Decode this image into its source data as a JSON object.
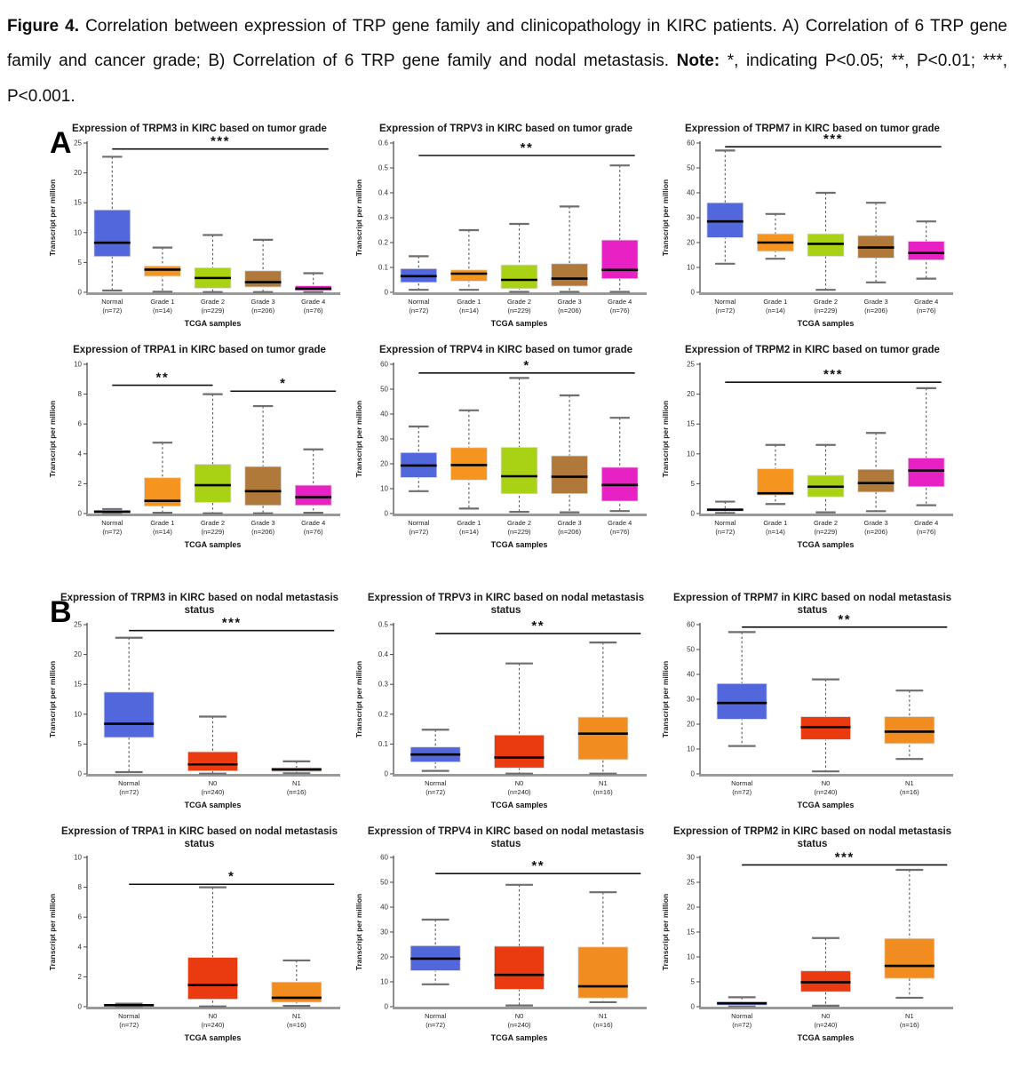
{
  "caption": {
    "fig_label": "Figure 4.",
    "body": " Correlation between expression of TRP gene family and clinicopathology in KIRC patients. A) Correlation of 6 TRP gene family and cancer grade; B) Correlation of 6 TRP gene family and nodal metastasis. ",
    "note_label": "Note:",
    "note_body": " *, indicating P<0.05; **, P<0.01; ***, P<0.001."
  },
  "panels": [
    {
      "label": "A"
    },
    {
      "label": "B"
    }
  ],
  "chart_data": [
    {
      "type": "box",
      "title": "Expression of TRPM3 in KIRC based on tumor grade",
      "ylabel": "Transcript per million",
      "xlabel": "TCGA samples",
      "ylim": [
        0,
        25
      ],
      "yticks": [
        0,
        5,
        10,
        15,
        20,
        25
      ],
      "ytick_labels": [
        "0",
        "5",
        "10",
        "15",
        "20",
        "25"
      ],
      "categories": [
        "Normal",
        "Grade 1",
        "Grade 2",
        "Grade 3",
        "Grade 4"
      ],
      "counts": [
        "(n=72)",
        "(n=14)",
        "(n=229)",
        "(n=206)",
        "(n=76)"
      ],
      "colors": [
        "#5367dd",
        "#f5941e",
        "#a9d214",
        "#b0793a",
        "#e821c4"
      ],
      "boxes": [
        {
          "low": 0.3,
          "q1": 6.0,
          "median": 8.3,
          "q3": 13.8,
          "high": 22.7
        },
        {
          "low": 0.1,
          "q1": 2.7,
          "median": 3.8,
          "q3": 4.4,
          "high": 7.5
        },
        {
          "low": 0.05,
          "q1": 0.7,
          "median": 2.4,
          "q3": 4.1,
          "high": 9.6
        },
        {
          "low": 0.05,
          "q1": 0.9,
          "median": 1.7,
          "q3": 3.6,
          "high": 8.8
        },
        {
          "low": 0.05,
          "q1": 0.3,
          "median": 0.6,
          "q3": 1.1,
          "high": 3.2
        }
      ],
      "significance": [
        {
          "label": "***",
          "from": 0,
          "to": 4.3,
          "y": 24
        }
      ]
    },
    {
      "type": "box",
      "title": "Expression of TRPV3 in KIRC based on tumor grade",
      "ylabel": "Transcript per million",
      "xlabel": "TCGA samples",
      "ylim": [
        0,
        0.6
      ],
      "yticks": [
        0,
        0.1,
        0.2,
        0.3,
        0.4,
        0.5,
        0.6
      ],
      "ytick_labels": [
        "0",
        "0.1",
        "0.2",
        "0.3",
        "0.4",
        "0.5",
        "0.6"
      ],
      "categories": [
        "Normal",
        "Grade 1",
        "Grade 2",
        "Grade 3",
        "Grade 4"
      ],
      "counts": [
        "(n=72)",
        "(n=14)",
        "(n=229)",
        "(n=206)",
        "(n=76)"
      ],
      "colors": [
        "#5367dd",
        "#f5941e",
        "#a9d214",
        "#b0793a",
        "#e821c4"
      ],
      "boxes": [
        {
          "low": 0.01,
          "q1": 0.04,
          "median": 0.065,
          "q3": 0.095,
          "high": 0.145
        },
        {
          "low": 0.01,
          "q1": 0.045,
          "median": 0.075,
          "q3": 0.09,
          "high": 0.25
        },
        {
          "low": 0.002,
          "q1": 0.015,
          "median": 0.05,
          "q3": 0.11,
          "high": 0.275
        },
        {
          "low": 0.002,
          "q1": 0.025,
          "median": 0.055,
          "q3": 0.115,
          "high": 0.345
        },
        {
          "low": 0.002,
          "q1": 0.055,
          "median": 0.09,
          "q3": 0.21,
          "high": 0.51
        }
      ],
      "significance": [
        {
          "label": "**",
          "from": 0,
          "to": 4.3,
          "y": 0.55
        }
      ]
    },
    {
      "type": "box",
      "title": "Expression of TRPM7 in KIRC based on tumor grade",
      "ylabel": "Transcript per million",
      "xlabel": "TCGA samples",
      "ylim": [
        0,
        60
      ],
      "yticks": [
        0,
        10,
        20,
        30,
        40,
        50,
        60
      ],
      "ytick_labels": [
        "0",
        "10",
        "20",
        "30",
        "40",
        "50",
        "60"
      ],
      "categories": [
        "Normal",
        "Grade 1",
        "Grade 2",
        "Grade 3",
        "Grade 4"
      ],
      "counts": [
        "(n=72)",
        "(n=14)",
        "(n=229)",
        "(n=206)",
        "(n=76)"
      ],
      "colors": [
        "#5367dd",
        "#f5941e",
        "#a9d214",
        "#b0793a",
        "#e821c4"
      ],
      "boxes": [
        {
          "low": 11.5,
          "q1": 22,
          "median": 28.5,
          "q3": 36,
          "high": 57
        },
        {
          "low": 13.5,
          "q1": 16.5,
          "median": 20,
          "q3": 23.5,
          "high": 31.5
        },
        {
          "low": 1,
          "q1": 14.5,
          "median": 19.5,
          "q3": 23.5,
          "high": 40
        },
        {
          "low": 4,
          "q1": 13.8,
          "median": 18,
          "q3": 22.8,
          "high": 36
        },
        {
          "low": 5.5,
          "q1": 13,
          "median": 15.8,
          "q3": 20.5,
          "high": 28.5
        }
      ],
      "significance": [
        {
          "label": "***",
          "from": 0,
          "to": 4.3,
          "y": 58.5
        }
      ]
    },
    {
      "type": "box",
      "title": "Expression of TRPA1 in KIRC based on tumor grade",
      "ylabel": "Transcript per million",
      "xlabel": "TCGA samples",
      "ylim": [
        0,
        10
      ],
      "yticks": [
        0,
        2,
        4,
        6,
        8,
        10
      ],
      "ytick_labels": [
        "0",
        "2",
        "4",
        "6",
        "8",
        "10"
      ],
      "categories": [
        "Normal",
        "Grade 1",
        "Grade 2",
        "Grade 3",
        "Grade 4"
      ],
      "counts": [
        "(n=72)",
        "(n=14)",
        "(n=229)",
        "(n=206)",
        "(n=76)"
      ],
      "colors": [
        "#5367dd",
        "#f5941e",
        "#a9d214",
        "#b0793a",
        "#e821c4"
      ],
      "boxes": [
        {
          "low": 0.02,
          "q1": 0.05,
          "median": 0.12,
          "q3": 0.22,
          "high": 0.3
        },
        {
          "low": 0.05,
          "q1": 0.5,
          "median": 0.85,
          "q3": 2.4,
          "high": 4.75
        },
        {
          "low": 0.02,
          "q1": 0.75,
          "median": 1.9,
          "q3": 3.3,
          "high": 8.0
        },
        {
          "low": 0.02,
          "q1": 0.55,
          "median": 1.5,
          "q3": 3.15,
          "high": 7.2
        },
        {
          "low": 0.05,
          "q1": 0.55,
          "median": 1.1,
          "q3": 1.9,
          "high": 4.3
        }
      ],
      "significance": [
        {
          "label": "**",
          "from": 0,
          "to": 2,
          "y": 8.6
        },
        {
          "label": "*",
          "from": 2.35,
          "to": 4.45,
          "y": 8.2
        }
      ]
    },
    {
      "type": "box",
      "title": "Expression of TRPV4 in KIRC based on tumor grade",
      "ylabel": "Transcript per million",
      "xlabel": "TCGA samples",
      "ylim": [
        0,
        60
      ],
      "yticks": [
        0,
        10,
        20,
        30,
        40,
        50,
        60
      ],
      "ytick_labels": [
        "0",
        "10",
        "20",
        "30",
        "40",
        "50",
        "60"
      ],
      "categories": [
        "Normal",
        "Grade 1",
        "Grade 2",
        "Grade 3",
        "Grade 4"
      ],
      "counts": [
        "(n=72)",
        "(n=14)",
        "(n=229)",
        "(n=206)",
        "(n=76)"
      ],
      "colors": [
        "#5367dd",
        "#f5941e",
        "#a9d214",
        "#b0793a",
        "#e821c4"
      ],
      "boxes": [
        {
          "low": 9,
          "q1": 14.5,
          "median": 19.3,
          "q3": 24.5,
          "high": 35
        },
        {
          "low": 2,
          "q1": 13.5,
          "median": 19.5,
          "q3": 26.5,
          "high": 41.5
        },
        {
          "low": 0.7,
          "q1": 8,
          "median": 15,
          "q3": 26.6,
          "high": 54.5
        },
        {
          "low": 0.5,
          "q1": 8,
          "median": 14.8,
          "q3": 23.2,
          "high": 47.5
        },
        {
          "low": 1,
          "q1": 5,
          "median": 11.5,
          "q3": 18.6,
          "high": 38.5
        }
      ],
      "significance": [
        {
          "label": "*",
          "from": 0,
          "to": 4.3,
          "y": 56.5
        }
      ]
    },
    {
      "type": "box",
      "title": "Expression of TRPM2 in KIRC based on tumor grade",
      "ylabel": "Transcript per million",
      "xlabel": "TCGA samples",
      "ylim": [
        0,
        25
      ],
      "yticks": [
        0,
        5,
        10,
        15,
        20,
        25
      ],
      "ytick_labels": [
        "0",
        "5",
        "10",
        "15",
        "20",
        "25"
      ],
      "categories": [
        "Normal",
        "Grade 1",
        "Grade 2",
        "Grade 3",
        "Grade 4"
      ],
      "counts": [
        "(n=72)",
        "(n=14)",
        "(n=229)",
        "(n=206)",
        "(n=76)"
      ],
      "colors": [
        "#5367dd",
        "#f5941e",
        "#a9d214",
        "#b0793a",
        "#e821c4"
      ],
      "boxes": [
        {
          "low": 0.1,
          "q1": 0.4,
          "median": 0.65,
          "q3": 0.85,
          "high": 2.0
        },
        {
          "low": 1.6,
          "q1": 3.1,
          "median": 3.4,
          "q3": 7.5,
          "high": 11.5
        },
        {
          "low": 0.2,
          "q1": 2.8,
          "median": 4.5,
          "q3": 6.4,
          "high": 11.5
        },
        {
          "low": 0.4,
          "q1": 3.6,
          "median": 5.1,
          "q3": 7.4,
          "high": 13.5
        },
        {
          "low": 1.4,
          "q1": 4.5,
          "median": 7.2,
          "q3": 9.3,
          "high": 21.0
        }
      ],
      "significance": [
        {
          "label": "***",
          "from": 0,
          "to": 4.3,
          "y": 22
        }
      ]
    },
    {
      "type": "box",
      "title": "Expression of TRPM3 in KIRC based on nodal metastasis status",
      "ylabel": "Transcript per million",
      "xlabel": "TCGA samples",
      "ylim": [
        0,
        25
      ],
      "yticks": [
        0,
        5,
        10,
        15,
        20,
        25
      ],
      "ytick_labels": [
        "0",
        "5",
        "10",
        "15",
        "20",
        "25"
      ],
      "categories": [
        "Normal",
        "N0",
        "N1"
      ],
      "counts": [
        "(n=72)",
        "(n=240)",
        "(n=16)"
      ],
      "colors": [
        "#5367dd",
        "#e93a10",
        "#f08c20"
      ],
      "boxes": [
        {
          "low": 0.3,
          "q1": 6.1,
          "median": 8.4,
          "q3": 13.7,
          "high": 22.8
        },
        {
          "low": 0.05,
          "q1": 0.5,
          "median": 1.6,
          "q3": 3.7,
          "high": 9.6
        },
        {
          "low": 0.1,
          "q1": 0.4,
          "median": 0.75,
          "q3": 1.0,
          "high": 2.1
        }
      ],
      "significance": [
        {
          "label": "***",
          "from": 0,
          "to": 2.45,
          "y": 24
        }
      ]
    },
    {
      "type": "box",
      "title": "Expression of TRPV3 in KIRC based on nodal metastasis status",
      "ylabel": "Transcript per million",
      "xlabel": "TCGA samples",
      "ylim": [
        0,
        0.5
      ],
      "yticks": [
        0,
        0.1,
        0.2,
        0.3,
        0.4,
        0.5
      ],
      "ytick_labels": [
        "0",
        "0.1",
        "0.2",
        "0.3",
        "0.4",
        "0.5"
      ],
      "categories": [
        "Normal",
        "N0",
        "N1"
      ],
      "counts": [
        "(n=72)",
        "(n=240)",
        "(n=16)"
      ],
      "colors": [
        "#5367dd",
        "#e93a10",
        "#f08c20"
      ],
      "boxes": [
        {
          "low": 0.01,
          "q1": 0.04,
          "median": 0.065,
          "q3": 0.09,
          "high": 0.148
        },
        {
          "low": 0.001,
          "q1": 0.02,
          "median": 0.055,
          "q3": 0.13,
          "high": 0.37
        },
        {
          "low": 0.001,
          "q1": 0.048,
          "median": 0.135,
          "q3": 0.19,
          "high": 0.44
        }
      ],
      "significance": [
        {
          "label": "**",
          "from": 0,
          "to": 2.45,
          "y": 0.47
        }
      ]
    },
    {
      "type": "box",
      "title": "Expression of TRPM7 in KIRC based on nodal metastasis status",
      "ylabel": "Transcript per million",
      "xlabel": "TCGA samples",
      "ylim": [
        0,
        60
      ],
      "yticks": [
        0,
        10,
        20,
        30,
        40,
        50,
        60
      ],
      "ytick_labels": [
        "0",
        "10",
        "20",
        "30",
        "40",
        "50",
        "60"
      ],
      "categories": [
        "Normal",
        "N0",
        "N1"
      ],
      "counts": [
        "(n=72)",
        "(n=240)",
        "(n=16)"
      ],
      "colors": [
        "#5367dd",
        "#e93a10",
        "#f08c20"
      ],
      "boxes": [
        {
          "low": 11.2,
          "q1": 22,
          "median": 28.5,
          "q3": 36.3,
          "high": 57
        },
        {
          "low": 1,
          "q1": 13.8,
          "median": 18.8,
          "q3": 23,
          "high": 38
        },
        {
          "low": 6,
          "q1": 12.2,
          "median": 17,
          "q3": 23,
          "high": 33.5
        }
      ],
      "significance": [
        {
          "label": "**",
          "from": 0,
          "to": 2.45,
          "y": 59
        }
      ]
    },
    {
      "type": "box",
      "title": "Expression of TRPA1 in KIRC based on nodal metastasis status",
      "ylabel": "Transcript per million",
      "xlabel": "TCGA samples",
      "ylim": [
        0,
        10
      ],
      "yticks": [
        0,
        2,
        4,
        6,
        8,
        10
      ],
      "ytick_labels": [
        "0",
        "2",
        "4",
        "6",
        "8",
        "10"
      ],
      "categories": [
        "Normal",
        "N0",
        "N1"
      ],
      "counts": [
        "(n=72)",
        "(n=240)",
        "(n=16)"
      ],
      "colors": [
        "#5367dd",
        "#e93a10",
        "#f08c20"
      ],
      "boxes": [
        {
          "low": 0.02,
          "q1": 0.05,
          "median": 0.1,
          "q3": 0.15,
          "high": 0.2
        },
        {
          "low": 0.02,
          "q1": 0.5,
          "median": 1.45,
          "q3": 3.3,
          "high": 8.0
        },
        {
          "low": 0.05,
          "q1": 0.3,
          "median": 0.6,
          "q3": 1.65,
          "high": 3.1
        }
      ],
      "significance": [
        {
          "label": "*",
          "from": 0,
          "to": 2.45,
          "y": 8.2
        }
      ]
    },
    {
      "type": "box",
      "title": "Expression of TRPV4 in KIRC based on nodal metastasis status",
      "ylabel": "Transcript per million",
      "xlabel": "TCGA samples",
      "ylim": [
        0,
        60
      ],
      "yticks": [
        0,
        10,
        20,
        30,
        40,
        50,
        60
      ],
      "ytick_labels": [
        "0",
        "10",
        "20",
        "30",
        "40",
        "50",
        "60"
      ],
      "categories": [
        "Normal",
        "N0",
        "N1"
      ],
      "counts": [
        "(n=72)",
        "(n=240)",
        "(n=16)"
      ],
      "colors": [
        "#5367dd",
        "#e93a10",
        "#f08c20"
      ],
      "boxes": [
        {
          "low": 9,
          "q1": 14.5,
          "median": 19.3,
          "q3": 24.5,
          "high": 35
        },
        {
          "low": 0.5,
          "q1": 7,
          "median": 12.8,
          "q3": 24.3,
          "high": 49
        },
        {
          "low": 1.8,
          "q1": 3.5,
          "median": 8.2,
          "q3": 24,
          "high": 46
        }
      ],
      "significance": [
        {
          "label": "**",
          "from": 0,
          "to": 2.45,
          "y": 53.5
        }
      ]
    },
    {
      "type": "box",
      "title": "Expression of TRPM2 in KIRC based on nodal metastasis status",
      "ylabel": "Transcript per million",
      "xlabel": "TCGA samples",
      "ylim": [
        0,
        30
      ],
      "yticks": [
        0,
        5,
        10,
        15,
        20,
        25,
        30
      ],
      "ytick_labels": [
        "0",
        "5",
        "10",
        "15",
        "20",
        "25",
        "30"
      ],
      "categories": [
        "Normal",
        "N0",
        "N1"
      ],
      "counts": [
        "(n=72)",
        "(n=240)",
        "(n=16)"
      ],
      "colors": [
        "#5367dd",
        "#e93a10",
        "#f08c20"
      ],
      "boxes": [
        {
          "low": 0.1,
          "q1": 0.3,
          "median": 0.7,
          "q3": 0.9,
          "high": 1.9
        },
        {
          "low": 0.2,
          "q1": 3.0,
          "median": 4.9,
          "q3": 7.2,
          "high": 13.8
        },
        {
          "low": 1.8,
          "q1": 5.7,
          "median": 8.2,
          "q3": 13.7,
          "high": 27.5
        }
      ],
      "significance": [
        {
          "label": "***",
          "from": 0,
          "to": 2.45,
          "y": 28.5
        }
      ]
    }
  ]
}
